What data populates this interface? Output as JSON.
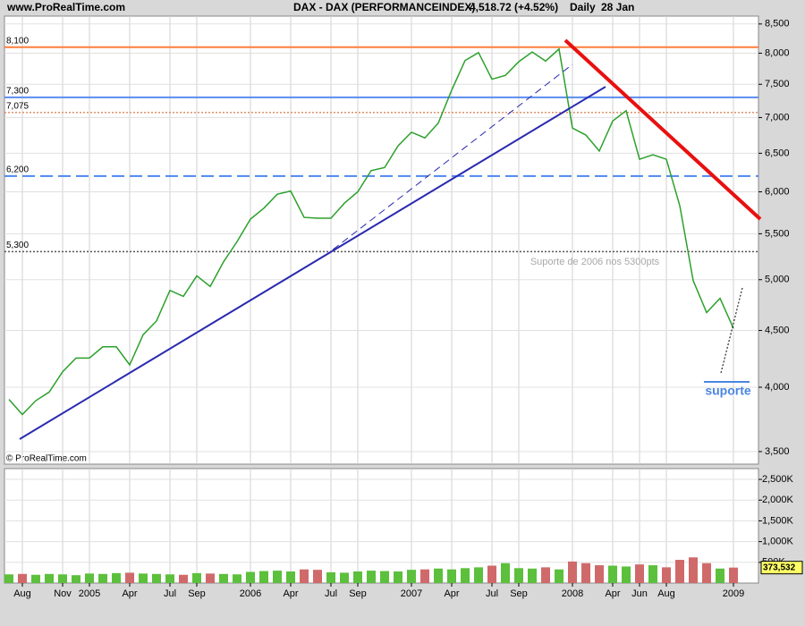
{
  "header": {
    "source": "www.ProRealTime.com",
    "title": "DAX - DAX (PERFORMANCEINDEX)",
    "last": "4,518.72 (+4.52%)",
    "period": "Daily",
    "date": "28 Jan",
    "copyright": "© ProRealTime.com"
  },
  "chart_data": [
    {
      "type": "line",
      "log": true,
      "grid": true,
      "color": "#2ca02c",
      "categories": [
        null,
        "Aug",
        null,
        null,
        "Nov",
        null,
        "2005",
        null,
        null,
        "Apr",
        null,
        null,
        "Jul",
        null,
        "Sep",
        null,
        null,
        null,
        "2006",
        null,
        null,
        "Apr",
        null,
        null,
        "Jul",
        null,
        "Sep",
        null,
        null,
        null,
        "2007",
        null,
        null,
        "Apr",
        null,
        null,
        "Jul",
        null,
        "Sep",
        null,
        null,
        null,
        "2008",
        null,
        null,
        "Apr",
        null,
        "Jun",
        null,
        "Aug",
        null,
        null,
        null,
        null,
        "2009"
      ],
      "values": [
        3900,
        3780,
        3890,
        3960,
        4130,
        4250,
        4250,
        4350,
        4350,
        4190,
        4460,
        4590,
        4890,
        4830,
        5040,
        4930,
        5190,
        5410,
        5670,
        5800,
        5970,
        6010,
        5690,
        5680,
        5680,
        5860,
        6000,
        6270,
        6310,
        6600,
        6790,
        6710,
        6920,
        7410,
        7880,
        8010,
        7580,
        7640,
        7860,
        8020,
        7870,
        8070,
        6850,
        6750,
        6530,
        6950,
        7100,
        6420,
        6480,
        6420,
        5830,
        4990,
        4670,
        4810,
        4520
      ],
      "ylim": [
        3410,
        8640
      ],
      "yticks": [
        {
          "value": 3500,
          "label": "3,500"
        },
        {
          "value": 4000,
          "label": "4,000"
        },
        {
          "value": 4500,
          "label": "4,500"
        },
        {
          "value": 5000,
          "label": "5,000"
        },
        {
          "value": 5500,
          "label": "5,500"
        },
        {
          "value": 6000,
          "label": "6,000"
        },
        {
          "value": 6500,
          "label": "6,500"
        },
        {
          "value": 7000,
          "label": "7,000"
        },
        {
          "value": 7500,
          "label": "7,500"
        },
        {
          "value": 8000,
          "label": "8,000"
        },
        {
          "value": 8500,
          "label": "8,500"
        }
      ],
      "hlines": [
        {
          "value": 8100,
          "label": "8,100",
          "color": "#ff7f3f",
          "style": "solid"
        },
        {
          "value": 7300,
          "label": "7,300",
          "color": "#5b8cf0",
          "style": "solid"
        },
        {
          "value": 7075,
          "label": "7,075",
          "color": "#e0906a",
          "style": "dotted"
        },
        {
          "value": 6200,
          "label": "6,200",
          "color": "#4f86f0",
          "style": "dashed"
        },
        {
          "value": 5300,
          "label": "5,300",
          "color": "#555555",
          "style": "dotted"
        }
      ],
      "annotations": [
        "Suporte de 2006 nos 5300pts",
        "suporte"
      ]
    },
    {
      "type": "bar",
      "grid": true,
      "up_color": "#5cc03c",
      "down_color": "#d06a6a",
      "values": [
        210000,
        220000,
        200000,
        220000,
        210000,
        190000,
        230000,
        220000,
        240000,
        250000,
        230000,
        220000,
        210000,
        200000,
        240000,
        230000,
        220000,
        210000,
        270000,
        290000,
        300000,
        280000,
        330000,
        320000,
        260000,
        250000,
        280000,
        300000,
        290000,
        280000,
        320000,
        330000,
        350000,
        330000,
        360000,
        380000,
        420000,
        480000,
        360000,
        350000,
        380000,
        330000,
        520000,
        480000,
        430000,
        420000,
        400000,
        450000,
        430000,
        380000,
        560000,
        620000,
        480000,
        350000,
        373532
      ],
      "value_labels": [
        null,
        null,
        null,
        null,
        null,
        null,
        null,
        null,
        null,
        null,
        null,
        null,
        null,
        null,
        null,
        null,
        null,
        null,
        null,
        null,
        null,
        null,
        null,
        null,
        null,
        null,
        null,
        null,
        null,
        null,
        null,
        null,
        null,
        null,
        null,
        null,
        null,
        null,
        null,
        null,
        null,
        null,
        null,
        null,
        null,
        null,
        null,
        null,
        null,
        null,
        null,
        null,
        null,
        null,
        "373,532"
      ],
      "ylim": [
        0,
        2760000
      ],
      "yticks": [
        {
          "value": 500000,
          "label": "500K"
        },
        {
          "value": 1000000,
          "label": "1,000K"
        },
        {
          "value": 1500000,
          "label": "1,500K"
        },
        {
          "value": 2000000,
          "label": "2,000K"
        },
        {
          "value": 2500000,
          "label": "2,500K"
        }
      ]
    }
  ]
}
